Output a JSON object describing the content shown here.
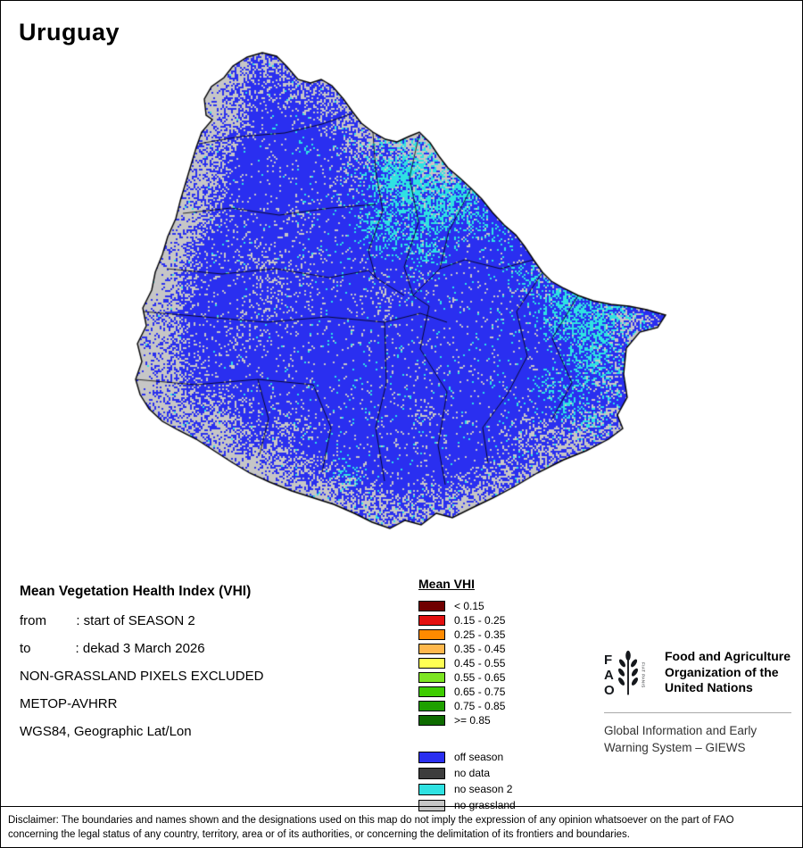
{
  "title": "Uruguay",
  "info": {
    "heading": "Mean Vegetation Health Index (VHI)",
    "lines": [
      "from        : start of SEASON 2",
      "to            : dekad 3 March 2026",
      "NON-GRASSLAND PIXELS EXCLUDED",
      "METOP-AVHRR",
      "WGS84, Geographic Lat/Lon"
    ]
  },
  "legend": {
    "title": "Mean VHI",
    "classes": [
      {
        "label": "< 0.15",
        "color": "#700000"
      },
      {
        "label": "0.15 - 0.25",
        "color": "#e31010"
      },
      {
        "label": "0.25 - 0.35",
        "color": "#ff8a00"
      },
      {
        "label": "0.35 - 0.45",
        "color": "#ffb84d"
      },
      {
        "label": "0.45 - 0.55",
        "color": "#ffff54"
      },
      {
        "label": "0.55 - 0.65",
        "color": "#7de522"
      },
      {
        "label": "0.65 - 0.75",
        "color": "#3ecc00"
      },
      {
        "label": "0.75 - 0.85",
        "color": "#1fa000"
      },
      {
        "label": ">= 0.85",
        "color": "#0e6b00"
      }
    ],
    "extra": [
      {
        "label": "off season",
        "color": "#2a2ff0"
      },
      {
        "label": "no data",
        "color": "#3d3d3d"
      },
      {
        "label": "no season 2",
        "color": "#2fe2e2"
      },
      {
        "label": "no grassland",
        "color": "#c6c6c6"
      }
    ]
  },
  "map": {
    "region": "Uruguay",
    "colors": {
      "off_season": "#2a2ff0",
      "no_season2": "#2fe2e2",
      "no_grassland": "#c6c6c6",
      "boundary": "#000000"
    }
  },
  "footer": {
    "org_name": "Food and Agriculture\nOrganization of the\nUnited Nations",
    "giews": "Global Information and Early\nWarning System – GIEWS",
    "logo_text": "FAO",
    "logo_motto": "FIAT PANIS"
  },
  "disclaimer": "Disclaimer: The boundaries and names shown and the designations used on this map do not imply the expression of any opinion whatsoever on the part of FAO\nconcerning the legal status of any country, territory, area or of its authorities, or concerning the delimitation of its frontiers and boundaries."
}
